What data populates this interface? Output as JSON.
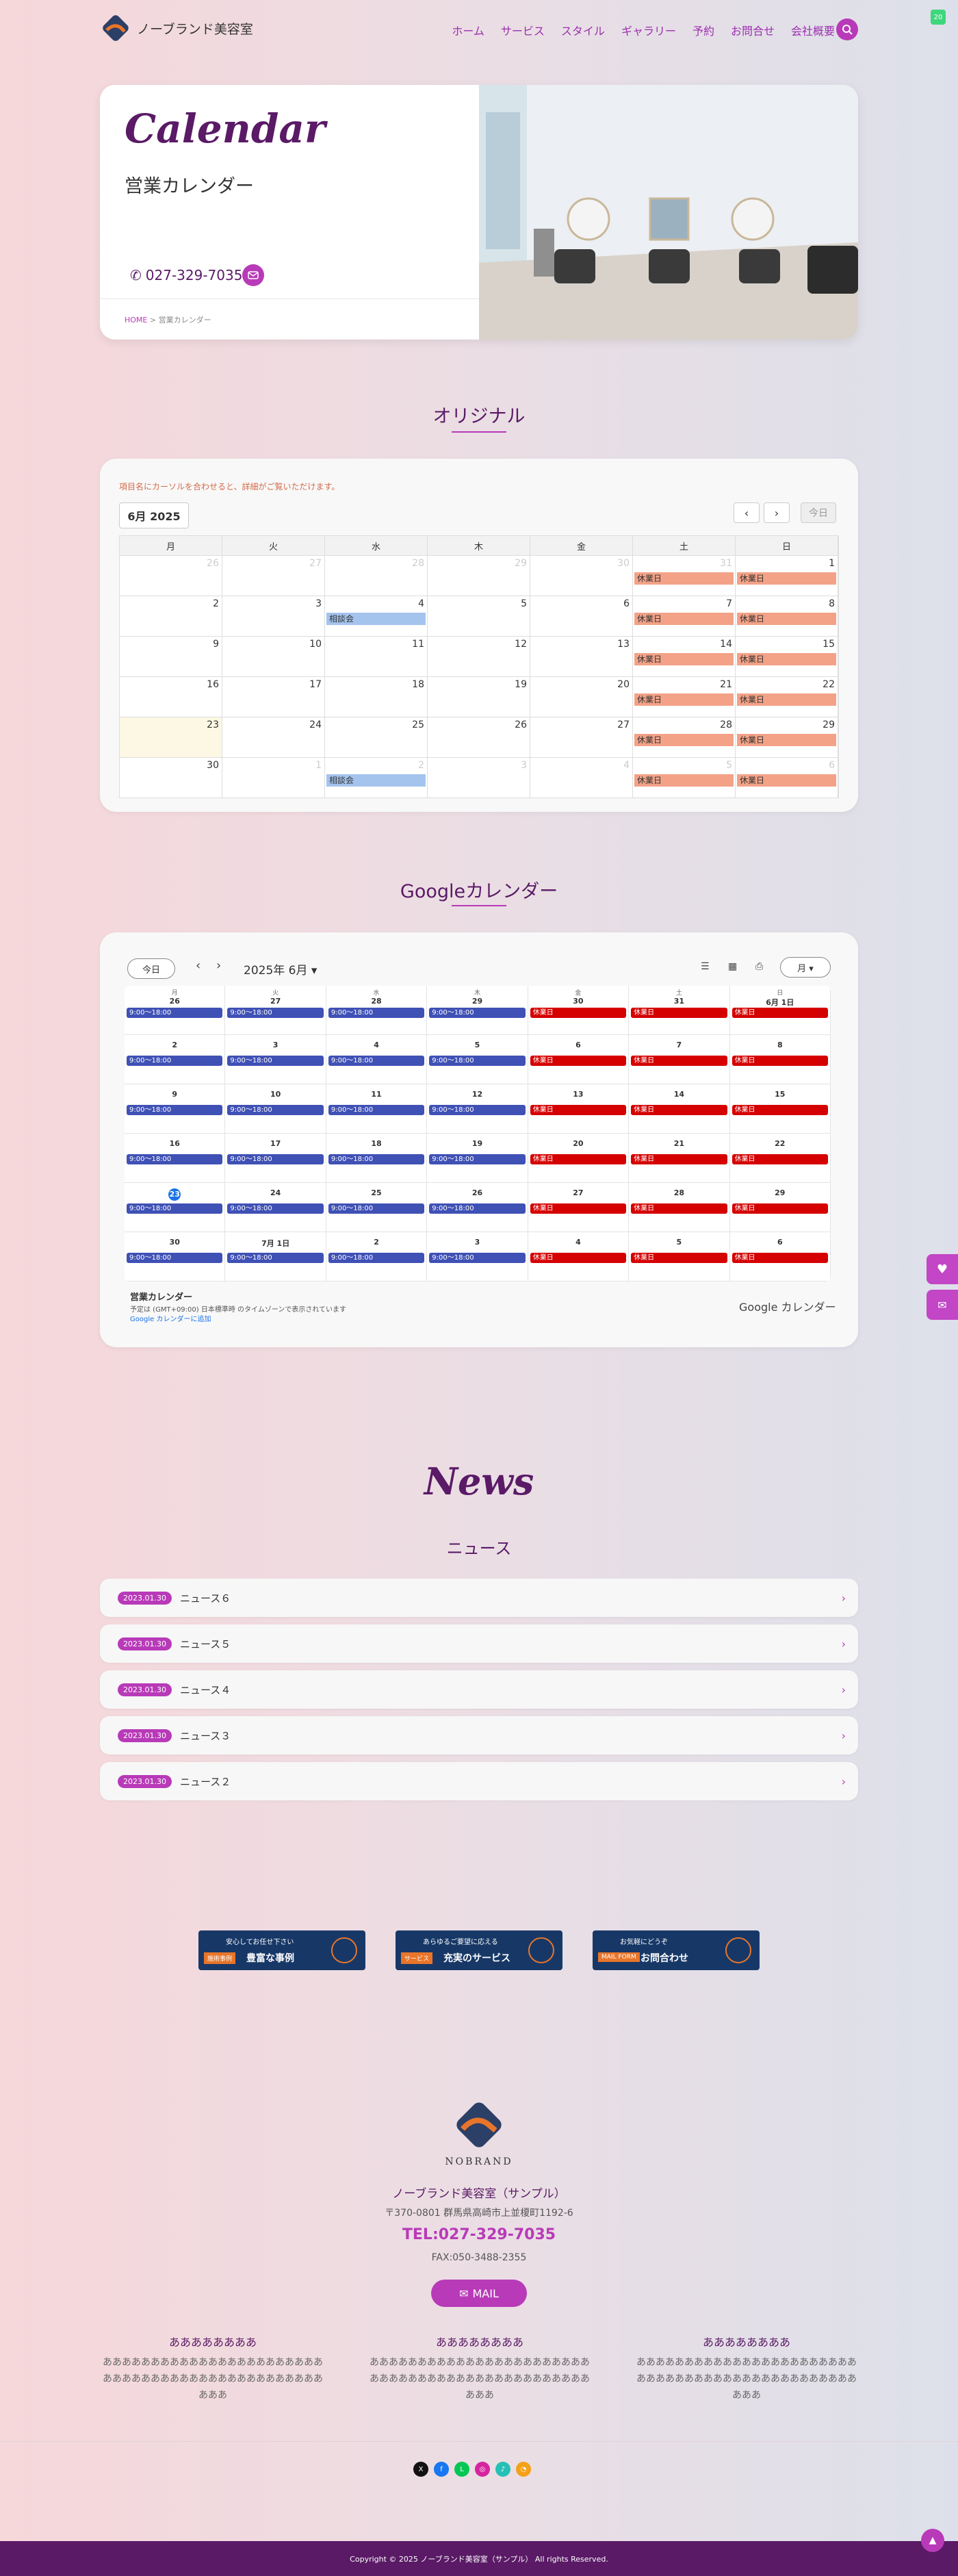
{
  "header": {
    "logo_text": "ノーブランド美容室",
    "nav": [
      "ホーム",
      "サービス",
      "スタイル",
      "ギャラリー",
      "予約",
      "お問合せ",
      "会社概要"
    ],
    "corner_badge": "20"
  },
  "hero": {
    "title": "Calendar",
    "subtitle": "営業カレンダー",
    "tel": "027-329-7035",
    "breadcrumb_home": "HOME",
    "breadcrumb_sep": ">",
    "breadcrumb_current": "営業カレンダー"
  },
  "original": {
    "section_title": "オリジナル",
    "hint": "項目名にカーソルを合わせると、詳細がご覧いただけます。",
    "month": "6月 2025",
    "prev": "‹",
    "next": "›",
    "today": "今日",
    "weekdays": [
      "月",
      "火",
      "水",
      "木",
      "金",
      "土",
      "日"
    ],
    "weeks": [
      [
        {
          "d": "26",
          "o": true
        },
        {
          "d": "27",
          "o": true
        },
        {
          "d": "28",
          "o": true
        },
        {
          "d": "29",
          "o": true
        },
        {
          "d": "30",
          "o": true
        },
        {
          "d": "31",
          "o": true,
          "ev": "休業日"
        },
        {
          "d": "1",
          "ev": "休業日"
        }
      ],
      [
        {
          "d": "2"
        },
        {
          "d": "3"
        },
        {
          "d": "4",
          "ev": "相談会",
          "cons": true
        },
        {
          "d": "5"
        },
        {
          "d": "6"
        },
        {
          "d": "7",
          "ev": "休業日"
        },
        {
          "d": "8",
          "ev": "休業日"
        }
      ],
      [
        {
          "d": "9"
        },
        {
          "d": "10"
        },
        {
          "d": "11"
        },
        {
          "d": "12"
        },
        {
          "d": "13"
        },
        {
          "d": "14",
          "ev": "休業日"
        },
        {
          "d": "15",
          "ev": "休業日"
        }
      ],
      [
        {
          "d": "16"
        },
        {
          "d": "17"
        },
        {
          "d": "18"
        },
        {
          "d": "19"
        },
        {
          "d": "20"
        },
        {
          "d": "21",
          "ev": "休業日"
        },
        {
          "d": "22",
          "ev": "休業日"
        }
      ],
      [
        {
          "d": "23",
          "t": true
        },
        {
          "d": "24"
        },
        {
          "d": "25"
        },
        {
          "d": "26"
        },
        {
          "d": "27"
        },
        {
          "d": "28",
          "ev": "休業日"
        },
        {
          "d": "29",
          "ev": "休業日"
        }
      ],
      [
        {
          "d": "30"
        },
        {
          "d": "1",
          "o": true
        },
        {
          "d": "2",
          "o": true,
          "ev": "相談会",
          "cons": true
        },
        {
          "d": "3",
          "o": true
        },
        {
          "d": "4",
          "o": true
        },
        {
          "d": "5",
          "o": true,
          "ev": "休業日"
        },
        {
          "d": "6",
          "o": true,
          "ev": "休業日"
        }
      ]
    ]
  },
  "google": {
    "section_title": "Googleカレンダー",
    "today": "今日",
    "prev": "‹",
    "next": "›",
    "month_label": "2025年 6月 ▾",
    "view": "月 ▾",
    "weekdays": [
      "月",
      "火",
      "水",
      "木",
      "金",
      "土",
      "日"
    ],
    "work_label": "9:00〜18:00",
    "hol_label": "休業日",
    "weeks": [
      [
        "26",
        "27",
        "28",
        "29",
        "30",
        "31",
        "6月 1日"
      ],
      [
        "2",
        "3",
        "4",
        "5",
        "6",
        "7",
        "8"
      ],
      [
        "9",
        "10",
        "11",
        "12",
        "13",
        "14",
        "15"
      ],
      [
        "16",
        "17",
        "18",
        "19",
        "20",
        "21",
        "22"
      ],
      [
        "23",
        "24",
        "25",
        "26",
        "27",
        "28",
        "29"
      ],
      [
        "30",
        "7月 1日",
        "2",
        "3",
        "4",
        "5",
        "6"
      ]
    ],
    "today_date": "23",
    "footer_title": "営業カレンダー",
    "footer_tz": "予定は (GMT+09:00) 日本標準時 のタイムゾーンで表示されています",
    "footer_add": "Google カレンダーに追加",
    "brand": "Google カレンダー"
  },
  "news": {
    "title": "News",
    "subtitle": "ニュース",
    "items": [
      {
        "date": "2023.01.30",
        "label": "ニュース６"
      },
      {
        "date": "2023.01.30",
        "label": "ニュース５"
      },
      {
        "date": "2023.01.30",
        "label": "ニュース４"
      },
      {
        "date": "2023.01.30",
        "label": "ニュース３"
      },
      {
        "date": "2023.01.30",
        "label": "ニュース２"
      }
    ]
  },
  "banners": [
    {
      "top": "安心してお任せ下さい",
      "tag": "施術事例",
      "main": "豊富な事例"
    },
    {
      "top": "あらゆるご要望に応える",
      "tag": "サービス",
      "main": "充実のサービス"
    },
    {
      "top": "お気軽にどうぞ",
      "tag": "MAIL FORM",
      "main": "お問合わせ"
    }
  ],
  "footer": {
    "brand": "NOBRAND",
    "name": "ノーブランド美容室（サンプル）",
    "address": "〒370-0801 群馬県高崎市上並榎町1192-6",
    "tel": "TEL:027-329-7035",
    "fax": "FAX:050-3488-2355",
    "mail": "MAIL",
    "columns": [
      {
        "title": "ああああああああ",
        "text": "あああああああああああああああああああああああああああああああああああああああああああああああああ"
      },
      {
        "title": "ああああああああ",
        "text": "あああああああああああああああああああああああああああああああああああああああああああああああああ"
      },
      {
        "title": "ああああああああ",
        "text": "あああああああああああああああああああああああああああああああああああああああああああああああああ"
      }
    ],
    "copyright": "Copyright © 2025 ノーブランド美容室（サンプル） All rights Reserved."
  },
  "colors": {
    "accent": "#b83ab8",
    "brand": "#5a1a66",
    "holiday": "#f3a287",
    "consult": "#a4c4ee",
    "g_work": "#3f51b5",
    "g_hol": "#d50000"
  },
  "socials": [
    {
      "name": "x-icon",
      "glyph": "X",
      "color": "#111111"
    },
    {
      "name": "facebook-icon",
      "glyph": "f",
      "color": "#1877f2"
    },
    {
      "name": "line-icon",
      "glyph": "L",
      "color": "#06c755"
    },
    {
      "name": "instagram-icon",
      "glyph": "◎",
      "color": "#d6249f"
    },
    {
      "name": "music-icon",
      "glyph": "♪",
      "color": "#25c0b6"
    },
    {
      "name": "rss-icon",
      "glyph": "◔",
      "color": "#f4a11a"
    }
  ]
}
